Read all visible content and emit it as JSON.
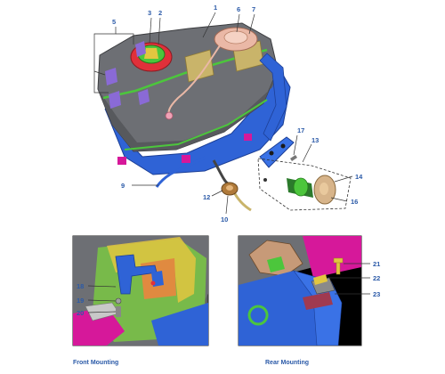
{
  "colors": {
    "callout_text": "#2b5aa8",
    "leader_line": "#333333",
    "tank_body": "#6d6f74",
    "frame_blue": "#2f63d6",
    "pump_red": "#e0303a",
    "pump_green": "#4cc63c",
    "module_peach": "#eab8a6",
    "accent_magenta": "#d6189a",
    "accent_yellow": "#e2c640"
  },
  "main_view": {
    "callouts": [
      "1",
      "2",
      "3",
      "5",
      "6",
      "7",
      "9",
      "10",
      "12",
      "13",
      "14",
      "16",
      "17"
    ]
  },
  "front_mounting": {
    "caption": "Front Mounting",
    "callouts": [
      "18",
      "19",
      "20"
    ]
  },
  "rear_mounting": {
    "caption": "Rear Mounting",
    "callouts": [
      "21",
      "22",
      "23"
    ]
  }
}
